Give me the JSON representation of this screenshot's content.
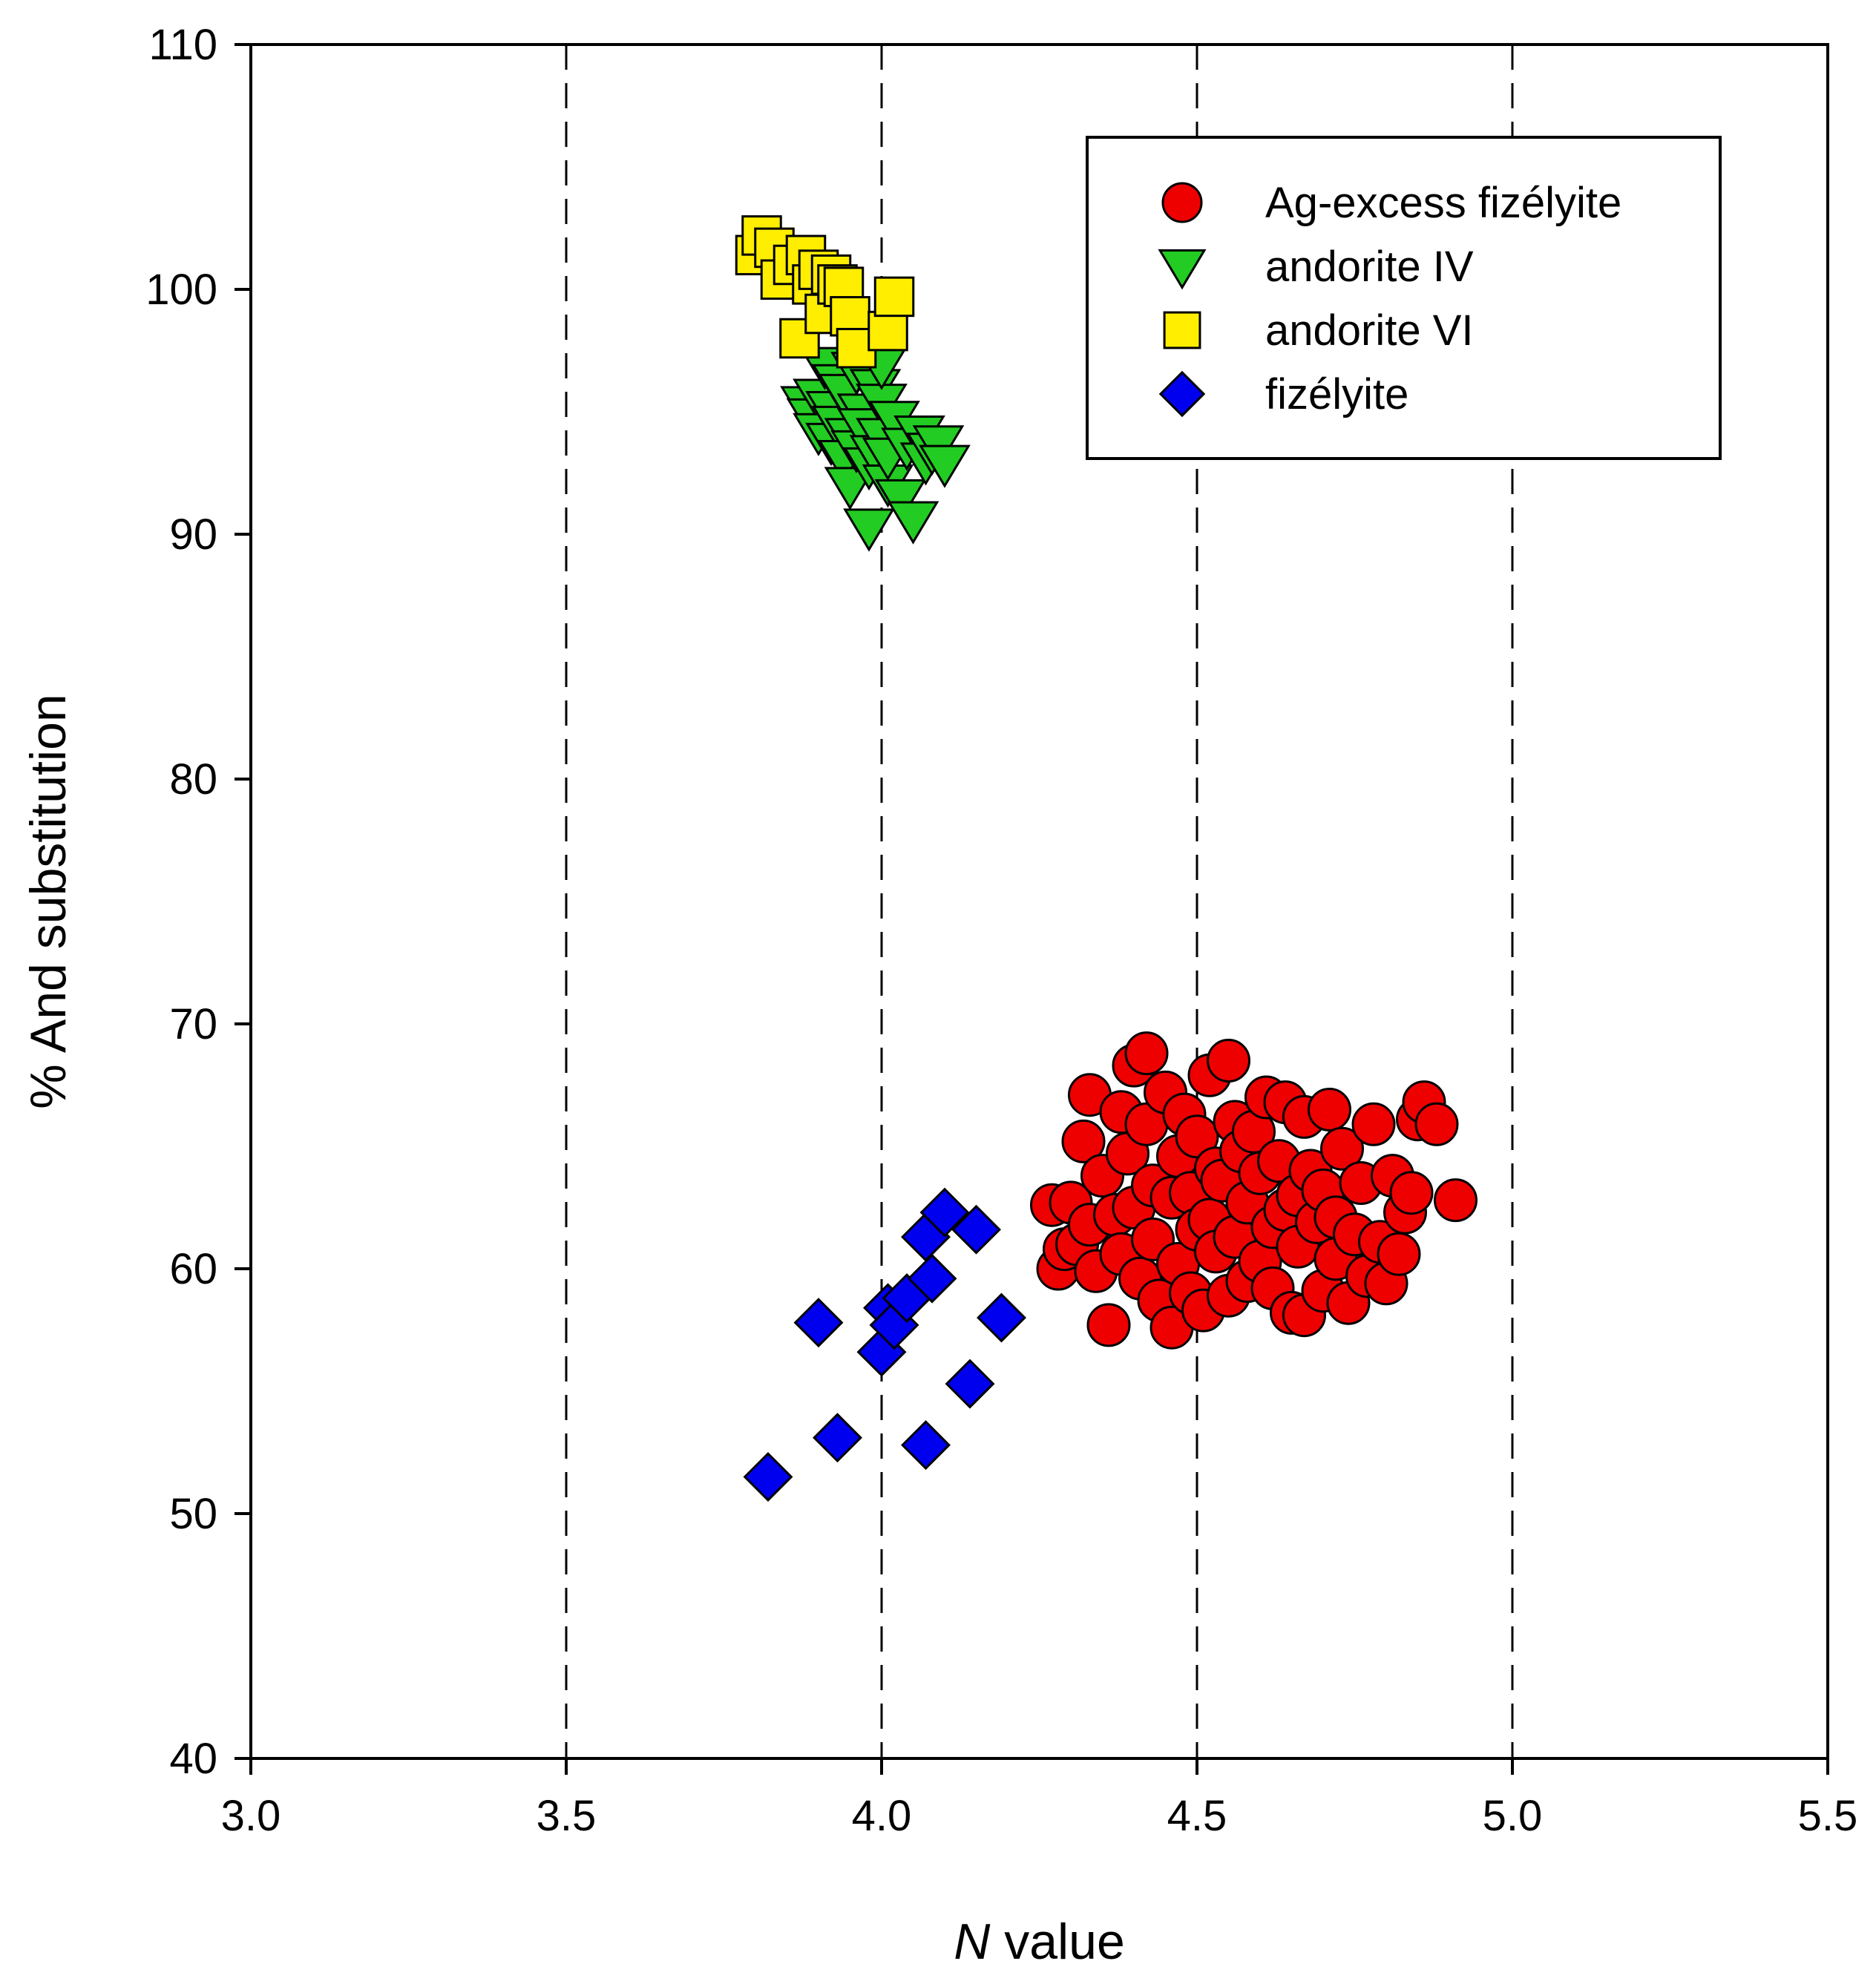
{
  "chart_data": {
    "type": "scatter",
    "title": "",
    "xlabel_italic": "N",
    "xlabel_rest": " value",
    "ylabel": "% And substitution",
    "xlim": [
      3.0,
      5.5
    ],
    "ylim": [
      40,
      110
    ],
    "x_ticks": [
      3.0,
      3.5,
      4.0,
      4.5,
      5.0,
      5.5
    ],
    "x_tick_labels": [
      "3.0",
      "3.5",
      "4.0",
      "4.5",
      "5.0",
      "5.5"
    ],
    "y_ticks": [
      40,
      50,
      60,
      70,
      80,
      90,
      100,
      110
    ],
    "y_tick_labels": [
      "40",
      "50",
      "60",
      "70",
      "80",
      "90",
      "100",
      "110"
    ],
    "reference_lines_x": [
      3.5,
      4.0,
      4.5,
      5.0
    ],
    "legend_position": "top-right",
    "series": [
      {
        "name": "Ag-excess fizélyite",
        "marker": "circle",
        "color": "#ee0000",
        "points": [
          [
            4.27,
            62.6
          ],
          [
            4.28,
            60.0
          ],
          [
            4.29,
            60.8
          ],
          [
            4.3,
            62.7
          ],
          [
            4.31,
            61.0
          ],
          [
            4.32,
            65.2
          ],
          [
            4.33,
            61.8
          ],
          [
            4.33,
            67.1
          ],
          [
            4.34,
            59.9
          ],
          [
            4.35,
            63.8
          ],
          [
            4.36,
            57.7
          ],
          [
            4.37,
            62.2
          ],
          [
            4.38,
            66.4
          ],
          [
            4.38,
            60.6
          ],
          [
            4.39,
            64.7
          ],
          [
            4.4,
            68.3
          ],
          [
            4.4,
            62.5
          ],
          [
            4.41,
            59.6
          ],
          [
            4.42,
            68.8
          ],
          [
            4.42,
            65.9
          ],
          [
            4.43,
            61.2
          ],
          [
            4.43,
            63.4
          ],
          [
            4.44,
            58.7
          ],
          [
            4.45,
            67.2
          ],
          [
            4.46,
            57.6
          ],
          [
            4.46,
            62.9
          ],
          [
            4.47,
            64.6
          ],
          [
            4.47,
            60.2
          ],
          [
            4.48,
            66.3
          ],
          [
            4.49,
            59.0
          ],
          [
            4.49,
            63.1
          ],
          [
            4.5,
            61.6
          ],
          [
            4.5,
            65.4
          ],
          [
            4.51,
            58.3
          ],
          [
            4.52,
            67.9
          ],
          [
            4.52,
            62.0
          ],
          [
            4.53,
            64.1
          ],
          [
            4.53,
            60.7
          ],
          [
            4.54,
            63.6
          ],
          [
            4.55,
            68.5
          ],
          [
            4.55,
            58.9
          ],
          [
            4.56,
            61.3
          ],
          [
            4.56,
            66.0
          ],
          [
            4.57,
            64.8
          ],
          [
            4.58,
            59.5
          ],
          [
            4.58,
            62.7
          ],
          [
            4.59,
            65.6
          ],
          [
            4.6,
            60.3
          ],
          [
            4.6,
            63.9
          ],
          [
            4.61,
            67.0
          ],
          [
            4.62,
            61.7
          ],
          [
            4.62,
            59.2
          ],
          [
            4.63,
            64.4
          ],
          [
            4.64,
            66.8
          ],
          [
            4.64,
            62.4
          ],
          [
            4.65,
            58.2
          ],
          [
            4.66,
            63.0
          ],
          [
            4.66,
            60.9
          ],
          [
            4.67,
            66.2
          ],
          [
            4.67,
            58.1
          ],
          [
            4.68,
            64.0
          ],
          [
            4.69,
            61.9
          ],
          [
            4.7,
            59.1
          ],
          [
            4.7,
            63.2
          ],
          [
            4.71,
            66.5
          ],
          [
            4.72,
            60.4
          ],
          [
            4.72,
            62.1
          ],
          [
            4.73,
            64.9
          ],
          [
            4.74,
            58.6
          ],
          [
            4.75,
            61.4
          ],
          [
            4.76,
            63.5
          ],
          [
            4.77,
            59.7
          ],
          [
            4.78,
            65.9
          ],
          [
            4.79,
            61.1
          ],
          [
            4.8,
            59.4
          ],
          [
            4.81,
            63.8
          ],
          [
            4.82,
            60.6
          ],
          [
            4.83,
            62.3
          ],
          [
            4.84,
            63.1
          ],
          [
            4.85,
            66.1
          ],
          [
            4.86,
            66.8
          ],
          [
            4.88,
            65.9
          ],
          [
            4.91,
            62.8
          ]
        ]
      },
      {
        "name": "andorite IV",
        "marker": "triangle-down",
        "color": "#22cc22",
        "points": [
          [
            3.88,
            95.3
          ],
          [
            3.89,
            94.8
          ],
          [
            3.9,
            95.6
          ],
          [
            3.9,
            94.2
          ],
          [
            3.91,
            96.9
          ],
          [
            3.92,
            95.1
          ],
          [
            3.92,
            93.8
          ],
          [
            3.93,
            96.2
          ],
          [
            3.93,
            94.5
          ],
          [
            3.94,
            93.1
          ],
          [
            3.94,
            95.8
          ],
          [
            3.95,
            92.0
          ],
          [
            3.95,
            94.0
          ],
          [
            3.96,
            96.7
          ],
          [
            3.96,
            93.5
          ],
          [
            3.97,
            95.0
          ],
          [
            3.97,
            94.4
          ],
          [
            3.98,
            92.8
          ],
          [
            3.98,
            90.3
          ],
          [
            3.99,
            96.0
          ],
          [
            3.99,
            93.3
          ],
          [
            4.0,
            95.4
          ],
          [
            4.0,
            94.0
          ],
          [
            4.0,
            96.9
          ],
          [
            4.01,
            92.1
          ],
          [
            4.01,
            93.2
          ],
          [
            4.02,
            94.7
          ],
          [
            4.03,
            91.5
          ],
          [
            4.04,
            93.6
          ],
          [
            4.05,
            90.6
          ],
          [
            4.06,
            94.1
          ],
          [
            4.07,
            93.0
          ],
          [
            4.08,
            93.4
          ],
          [
            4.09,
            93.7
          ],
          [
            4.1,
            92.9
          ]
        ]
      },
      {
        "name": "andorite VI",
        "marker": "square",
        "color": "#ffee00",
        "points": [
          [
            3.8,
            101.4
          ],
          [
            3.81,
            102.2
          ],
          [
            3.83,
            101.7
          ],
          [
            3.84,
            100.4
          ],
          [
            3.86,
            101.0
          ],
          [
            3.87,
            98.0
          ],
          [
            3.88,
            101.4
          ],
          [
            3.89,
            100.2
          ],
          [
            3.9,
            100.8
          ],
          [
            3.91,
            99.0
          ],
          [
            3.92,
            100.6
          ],
          [
            3.93,
            100.2
          ],
          [
            3.94,
            100.1
          ],
          [
            3.95,
            98.9
          ],
          [
            3.96,
            97.6
          ],
          [
            4.01,
            98.3
          ],
          [
            4.02,
            99.7
          ]
        ]
      },
      {
        "name": "fizélyite",
        "marker": "diamond",
        "color": "#0000ee",
        "points": [
          [
            3.82,
            51.5
          ],
          [
            3.9,
            57.8
          ],
          [
            3.93,
            53.1
          ],
          [
            4.0,
            56.6
          ],
          [
            4.01,
            58.4
          ],
          [
            4.02,
            57.7
          ],
          [
            4.04,
            58.8
          ],
          [
            4.07,
            52.8
          ],
          [
            4.07,
            61.3
          ],
          [
            4.08,
            59.6
          ],
          [
            4.1,
            62.3
          ],
          [
            4.14,
            55.3
          ],
          [
            4.15,
            61.6
          ],
          [
            4.19,
            58.0
          ]
        ]
      }
    ]
  }
}
